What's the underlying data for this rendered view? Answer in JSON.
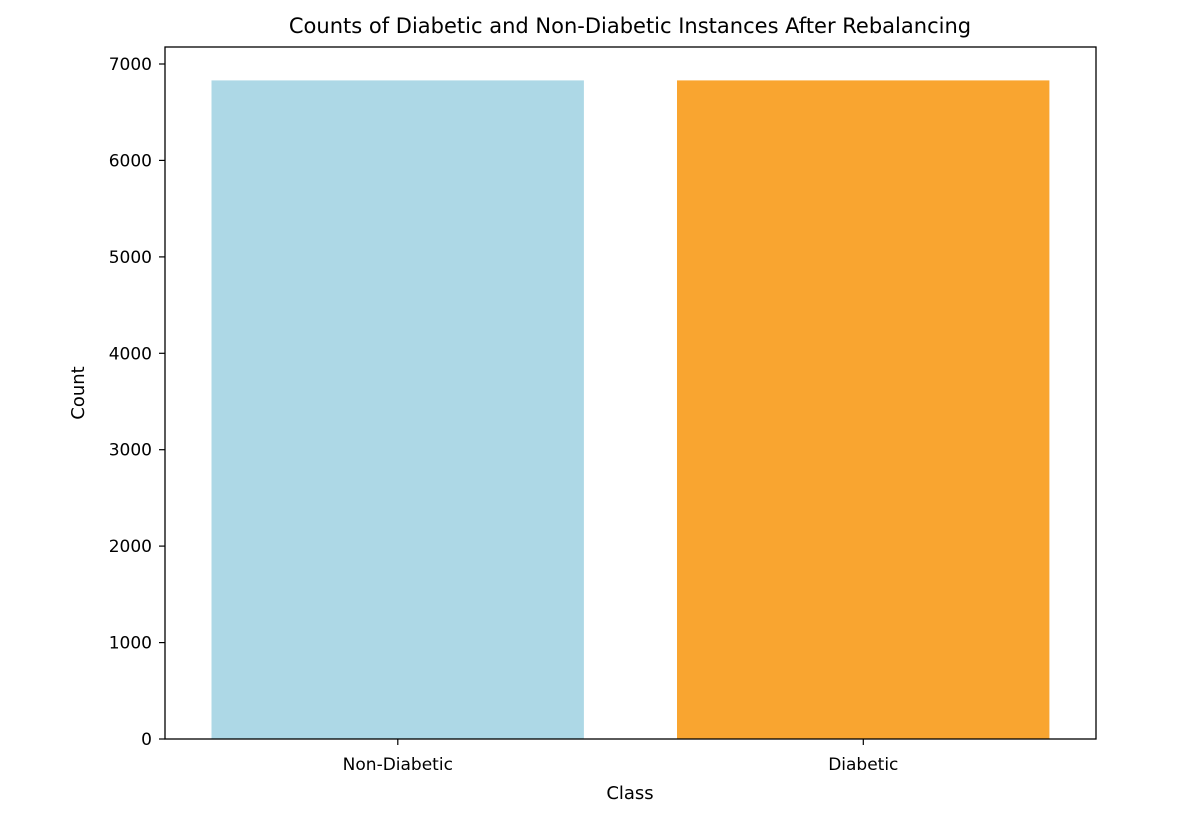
{
  "chart_data": {
    "type": "bar",
    "title": "Counts of Diabetic and Non-Diabetic Instances After Rebalancing",
    "xlabel": "Class",
    "ylabel": "Count",
    "categories": [
      "Non-Diabetic",
      "Diabetic"
    ],
    "values": [
      6830,
      6830
    ],
    "colors": [
      "#add8e6",
      "#f9a530"
    ],
    "ylim": [
      0,
      7000
    ],
    "yticks": [
      0,
      1000,
      2000,
      3000,
      4000,
      5000,
      6000,
      7000
    ],
    "grid": false,
    "legend": "none"
  }
}
